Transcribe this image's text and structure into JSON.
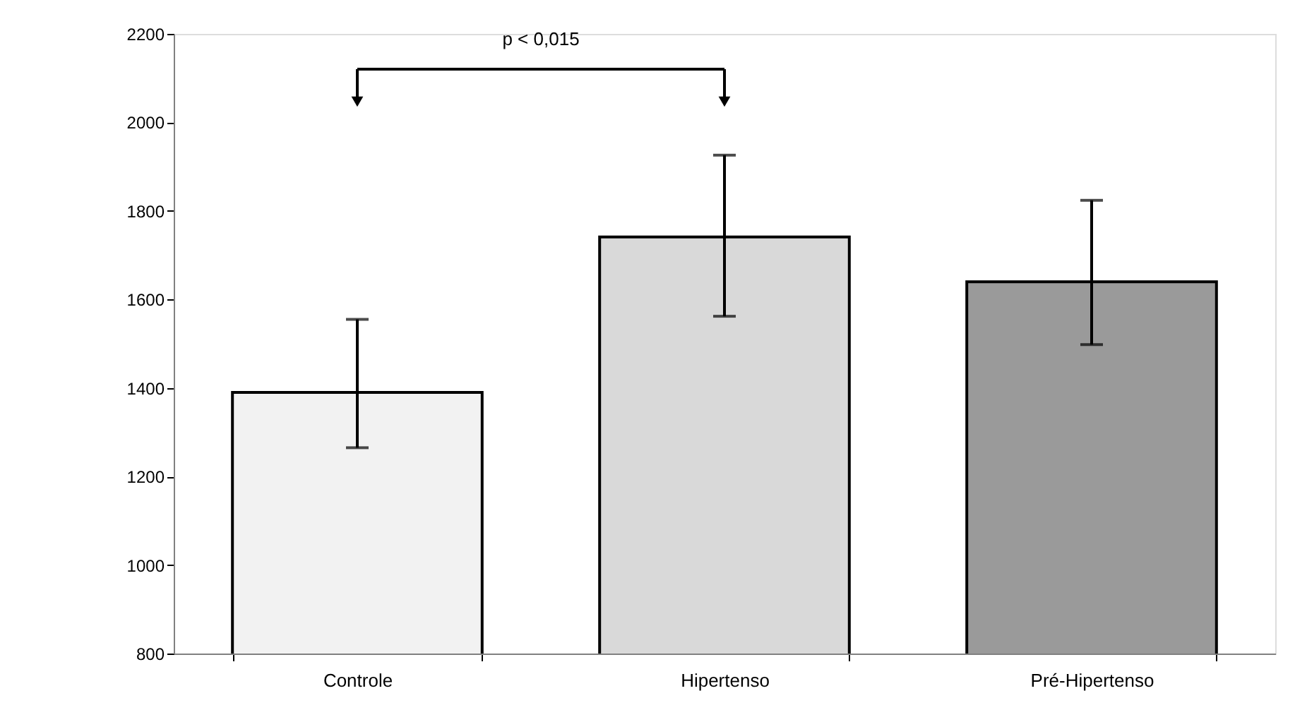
{
  "chart_data": {
    "type": "bar",
    "categories": [
      "Controle",
      "Hipertenso",
      "Pré-Hipertenso"
    ],
    "values": [
      1390,
      1741,
      1640
    ],
    "colors": [
      "#f2f2f2",
      "#d9d9d9",
      "#9a9a9a"
    ],
    "errors": [
      [
        1265,
        1555
      ],
      [
        1562,
        1926
      ],
      [
        1498,
        1824
      ]
    ],
    "ylim": [
      800,
      2200
    ],
    "yticks": [
      800,
      1000,
      1200,
      1400,
      1600,
      1800,
      2000,
      2200
    ],
    "grid": false,
    "annotations": [
      "p < 0,015"
    ]
  }
}
